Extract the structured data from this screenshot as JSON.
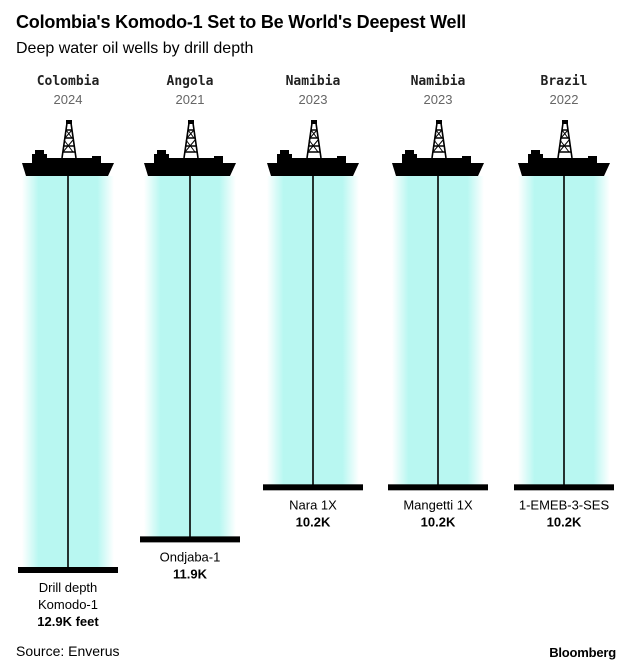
{
  "header": {
    "title": "Colombia's Komodo-1 Set to Be World's Deepest Well",
    "subtitle": "Deep water oil wells by drill depth"
  },
  "footer": {
    "source": "Source: Enverus",
    "brand": "Bloomberg"
  },
  "colors": {
    "water": "#b8f7f1",
    "line": "#000000"
  },
  "chart_data": {
    "type": "bar",
    "orientation": "vertical-down",
    "unit": "feet",
    "y_range": [
      0,
      12.9
    ],
    "categories": [
      "Komodo-1",
      "Ondjaba-1",
      "Nara 1X",
      "Mangetti 1X",
      "1-EMEB-3-SES"
    ],
    "values": [
      12.9,
      11.9,
      10.2,
      10.2,
      10.2
    ],
    "wells": [
      {
        "country": "Colombia",
        "year": "2024",
        "name": "Komodo-1",
        "prefix": "Drill depth",
        "value": 12.9,
        "value_label": "12.9K feet"
      },
      {
        "country": "Angola",
        "year": "2021",
        "name": "Ondjaba-1",
        "prefix": "",
        "value": 11.9,
        "value_label": "11.9K"
      },
      {
        "country": "Namibia",
        "year": "2023",
        "name": "Nara 1X",
        "prefix": "",
        "value": 10.2,
        "value_label": "10.2K"
      },
      {
        "country": "Namibia",
        "year": "2023",
        "name": "Mangetti 1X",
        "prefix": "",
        "value": 10.2,
        "value_label": "10.2K"
      },
      {
        "country": "Brazil",
        "year": "2022",
        "name": "1-EMEB-3-SES",
        "prefix": "",
        "value": 10.2,
        "value_label": "10.2K"
      }
    ]
  }
}
